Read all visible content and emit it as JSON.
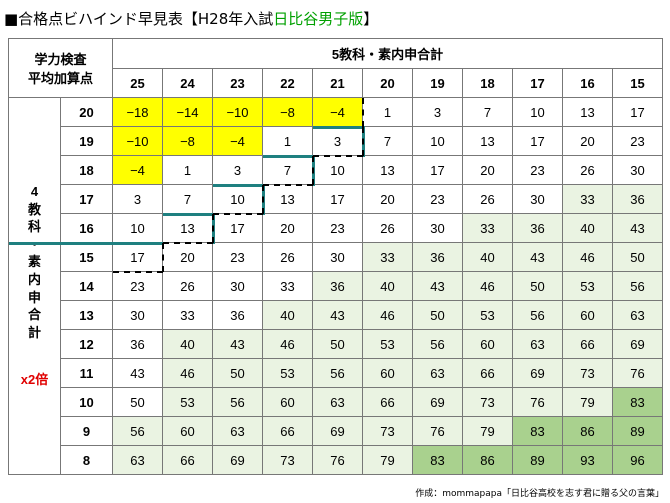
{
  "title": {
    "prefix": "■合格点ビハインド早見表【H28年入試",
    "highlight": "日比谷男子版",
    "suffix": "】"
  },
  "header": {
    "corner_label_line1": "学力検査",
    "corner_label_line2": "平均加算点",
    "column_group_label": "5教科・素内申合計",
    "columns": [
      "25",
      "24",
      "23",
      "22",
      "21",
      "20",
      "19",
      "18",
      "17",
      "16",
      "15"
    ]
  },
  "row_group_label": [
    "4",
    "教",
    "科",
    "・",
    "素",
    "内",
    "申",
    "合",
    "計"
  ],
  "multiplier_label": "x2倍",
  "rows": [
    {
      "label": "20",
      "cells": [
        "−18",
        "−14",
        "−10",
        "−8",
        "−4",
        "1",
        "3",
        "7",
        "10",
        "13",
        "17"
      ]
    },
    {
      "label": "19",
      "cells": [
        "−10",
        "−8",
        "−4",
        "1",
        "3",
        "7",
        "10",
        "13",
        "17",
        "20",
        "23"
      ]
    },
    {
      "label": "18",
      "cells": [
        "−4",
        "1",
        "3",
        "7",
        "10",
        "13",
        "17",
        "20",
        "23",
        "26",
        "30"
      ]
    },
    {
      "label": "17",
      "cells": [
        "3",
        "7",
        "10",
        "13",
        "17",
        "20",
        "23",
        "26",
        "30",
        "33",
        "36"
      ]
    },
    {
      "label": "16",
      "cells": [
        "10",
        "13",
        "17",
        "20",
        "23",
        "26",
        "30",
        "33",
        "36",
        "40",
        "43"
      ]
    },
    {
      "label": "15",
      "cells": [
        "17",
        "20",
        "23",
        "26",
        "30",
        "33",
        "36",
        "40",
        "43",
        "46",
        "50"
      ]
    },
    {
      "label": "14",
      "cells": [
        "23",
        "26",
        "30",
        "33",
        "36",
        "40",
        "43",
        "46",
        "50",
        "53",
        "56"
      ]
    },
    {
      "label": "13",
      "cells": [
        "30",
        "33",
        "36",
        "40",
        "43",
        "46",
        "50",
        "53",
        "56",
        "60",
        "63"
      ]
    },
    {
      "label": "12",
      "cells": [
        "36",
        "40",
        "43",
        "46",
        "50",
        "53",
        "56",
        "60",
        "63",
        "66",
        "69"
      ]
    },
    {
      "label": "11",
      "cells": [
        "43",
        "46",
        "50",
        "53",
        "56",
        "60",
        "63",
        "66",
        "69",
        "73",
        "76"
      ]
    },
    {
      "label": "10",
      "cells": [
        "50",
        "53",
        "56",
        "60",
        "63",
        "66",
        "69",
        "73",
        "76",
        "79",
        "83"
      ]
    },
    {
      "label": "9",
      "cells": [
        "56",
        "60",
        "63",
        "66",
        "69",
        "73",
        "76",
        "79",
        "83",
        "86",
        "89"
      ]
    },
    {
      "label": "8",
      "cells": [
        "63",
        "66",
        "69",
        "73",
        "76",
        "79",
        "83",
        "86",
        "89",
        "93",
        "96"
      ]
    }
  ],
  "colors": {
    "negative_highlight": "#ffff00",
    "light_green": "#eaf3e2",
    "medium_green": "#a9d18e",
    "threshold_line": "#1e8080",
    "title_highlight": "#00a000"
  },
  "credit": "作成：mommapapa「日比谷高校を志す君に贈る父の言葉」"
}
